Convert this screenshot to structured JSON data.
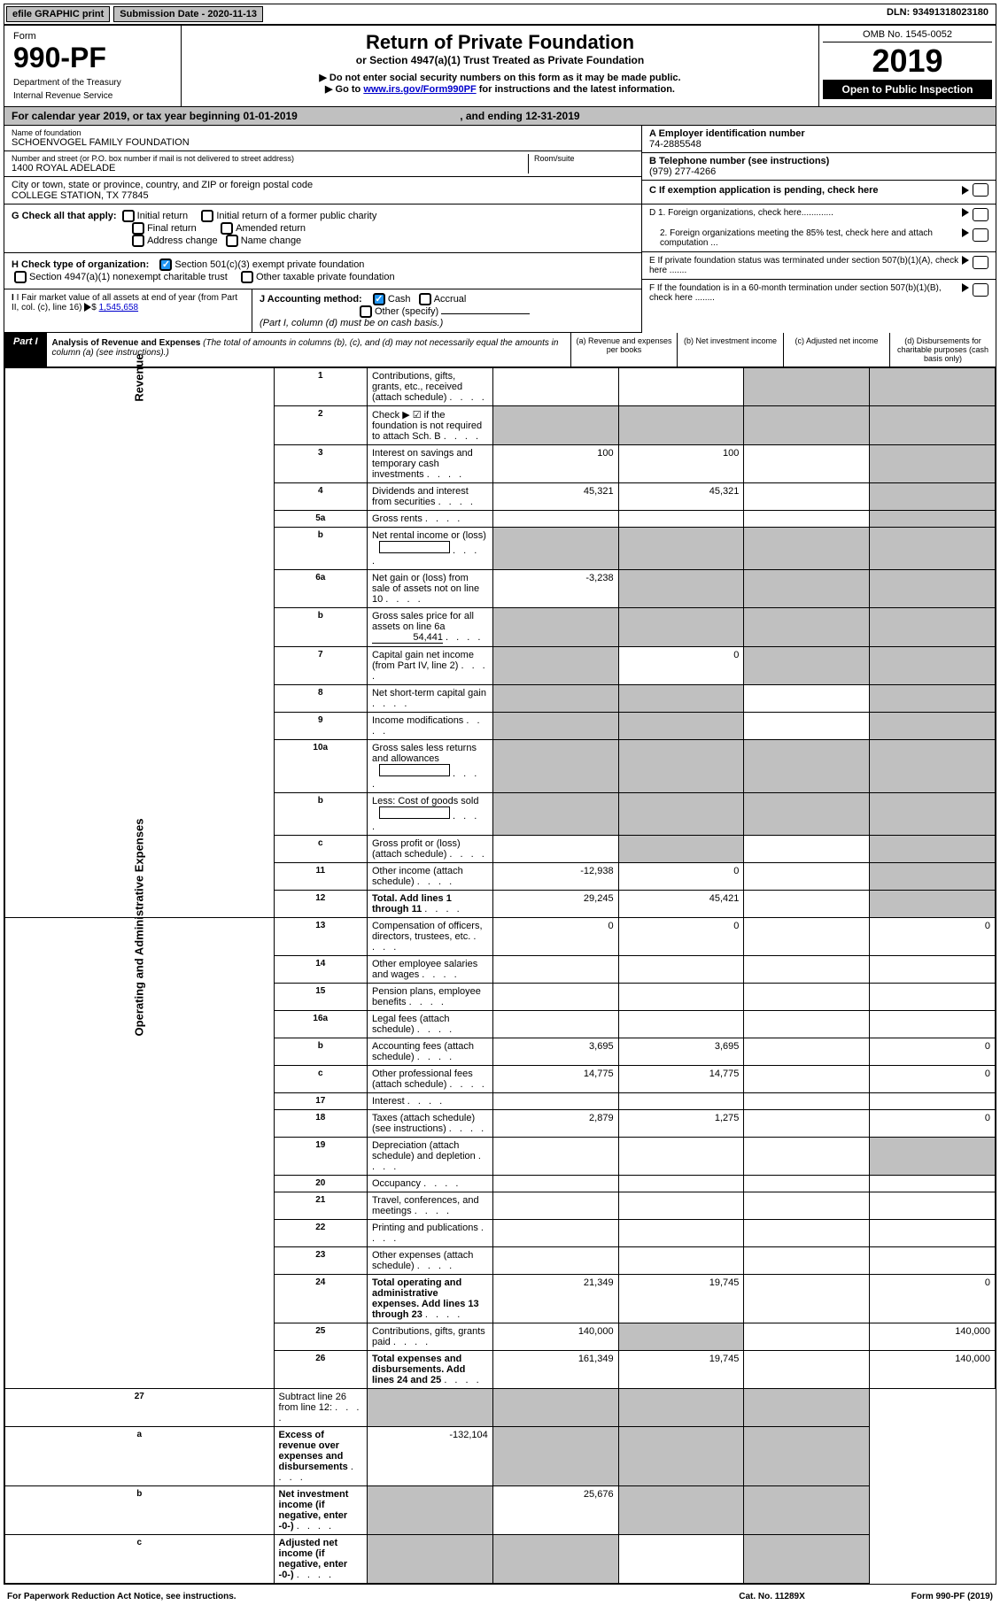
{
  "topbar": {
    "efile": "efile GRAPHIC print",
    "submission": "Submission Date - 2020-11-13",
    "dln": "DLN: 93491318023180"
  },
  "header": {
    "form_label": "Form",
    "form_number": "990-PF",
    "dept1": "Department of the Treasury",
    "dept2": "Internal Revenue Service",
    "title": "Return of Private Foundation",
    "subtitle": "or Section 4947(a)(1) Trust Treated as Private Foundation",
    "note1": "▶ Do not enter social security numbers on this form as it may be made public.",
    "note2": "▶ Go to ",
    "note2_link": "www.irs.gov/Form990PF",
    "note2_suffix": " for instructions and the latest information.",
    "omb": "OMB No. 1545-0052",
    "year": "2019",
    "open": "Open to Public Inspection"
  },
  "calendar": {
    "prefix": "For calendar year 2019, or tax year beginning ",
    "start": "01-01-2019",
    "mid": " , and ending ",
    "end": "12-31-2019"
  },
  "foundation": {
    "name_label": "Name of foundation",
    "name": "SCHOENVOGEL FAMILY FOUNDATION",
    "addr_label": "Number and street (or P.O. box number if mail is not delivered to street address)",
    "addr": "1400 ROYAL ADELADE",
    "room_label": "Room/suite",
    "city_label": "City or town, state or province, country, and ZIP or foreign postal code",
    "city": "COLLEGE STATION, TX  77845"
  },
  "right_info": {
    "a_label": "A Employer identification number",
    "a_val": "74-2885548",
    "b_label": "B Telephone number (see instructions)",
    "b_val": "(979) 277-4266",
    "c_label": "C If exemption application is pending, check here",
    "d1": "D 1. Foreign organizations, check here.............",
    "d2": "2. Foreign organizations meeting the 85% test, check here and attach computation ...",
    "e": "E  If private foundation status was terminated under section 507(b)(1)(A), check here .......",
    "f": "F  If the foundation is in a 60-month termination under section 507(b)(1)(B), check here ........"
  },
  "g": {
    "label": "G Check all that apply:",
    "opts": [
      "Initial return",
      "Initial return of a former public charity",
      "Final return",
      "Amended return",
      "Address change",
      "Name change"
    ]
  },
  "h": {
    "label": "H Check type of organization:",
    "opt1": "Section 501(c)(3) exempt private foundation",
    "opt2": "Section 4947(a)(1) nonexempt charitable trust",
    "opt3": "Other taxable private foundation"
  },
  "i": {
    "label": "I Fair market value of all assets at end of year (from Part II, col. (c), line 16)",
    "val": "1,545,658"
  },
  "j": {
    "label": "J Accounting method:",
    "cash": "Cash",
    "accrual": "Accrual",
    "other": "Other (specify)",
    "note": "(Part I, column (d) must be on cash basis.)"
  },
  "part1": {
    "label": "Part I",
    "title": "Analysis of Revenue and Expenses",
    "note": "(The total of amounts in columns (b), (c), and (d) may not necessarily equal the amounts in column (a) (see instructions).)",
    "col_a": "(a) Revenue and expenses per books",
    "col_b": "(b) Net investment income",
    "col_c": "(c) Adjusted net income",
    "col_d": "(d) Disbursements for charitable purposes (cash basis only)"
  },
  "vert": {
    "revenue": "Revenue",
    "expenses": "Operating and Administrative Expenses"
  },
  "rows": [
    {
      "n": "1",
      "desc": "Contributions, gifts, grants, etc., received (attach schedule)",
      "a": "",
      "b": "",
      "c": "shade",
      "d": "shade"
    },
    {
      "n": "2",
      "desc": "Check ▶ ☑ if the foundation is not required to attach Sch. B",
      "a": "shade",
      "b": "shade",
      "c": "shade",
      "d": "shade",
      "bold_not": true
    },
    {
      "n": "3",
      "desc": "Interest on savings and temporary cash investments",
      "a": "100",
      "b": "100",
      "c": "",
      "d": "shade"
    },
    {
      "n": "4",
      "desc": "Dividends and interest from securities",
      "a": "45,321",
      "b": "45,321",
      "c": "",
      "d": "shade"
    },
    {
      "n": "5a",
      "desc": "Gross rents",
      "a": "",
      "b": "",
      "c": "",
      "d": "shade"
    },
    {
      "n": "b",
      "desc": "Net rental income or (loss)",
      "a": "shade",
      "b": "shade",
      "c": "shade",
      "d": "shade",
      "inset": true
    },
    {
      "n": "6a",
      "desc": "Net gain or (loss) from sale of assets not on line 10",
      "a": "-3,238",
      "b": "shade",
      "c": "shade",
      "d": "shade"
    },
    {
      "n": "b",
      "desc": "Gross sales price for all assets on line 6a",
      "extra": "54,441",
      "a": "shade",
      "b": "shade",
      "c": "shade",
      "d": "shade"
    },
    {
      "n": "7",
      "desc": "Capital gain net income (from Part IV, line 2)",
      "a": "shade",
      "b": "0",
      "c": "shade",
      "d": "shade"
    },
    {
      "n": "8",
      "desc": "Net short-term capital gain",
      "a": "shade",
      "b": "shade",
      "c": "",
      "d": "shade"
    },
    {
      "n": "9",
      "desc": "Income modifications",
      "a": "shade",
      "b": "shade",
      "c": "",
      "d": "shade"
    },
    {
      "n": "10a",
      "desc": "Gross sales less returns and allowances",
      "a": "shade",
      "b": "shade",
      "c": "shade",
      "d": "shade",
      "inset": true
    },
    {
      "n": "b",
      "desc": "Less: Cost of goods sold",
      "a": "shade",
      "b": "shade",
      "c": "shade",
      "d": "shade",
      "inset": true
    },
    {
      "n": "c",
      "desc": "Gross profit or (loss) (attach schedule)",
      "a": "",
      "b": "shade",
      "c": "",
      "d": "shade"
    },
    {
      "n": "11",
      "desc": "Other income (attach schedule)",
      "a": "-12,938",
      "b": "0",
      "c": "",
      "d": "shade"
    },
    {
      "n": "12",
      "desc": "Total. Add lines 1 through 11",
      "a": "29,245",
      "b": "45,421",
      "c": "",
      "d": "shade",
      "bold": true
    }
  ],
  "exp_rows": [
    {
      "n": "13",
      "desc": "Compensation of officers, directors, trustees, etc.",
      "a": "0",
      "b": "0",
      "c": "",
      "d": "0"
    },
    {
      "n": "14",
      "desc": "Other employee salaries and wages",
      "a": "",
      "b": "",
      "c": "",
      "d": ""
    },
    {
      "n": "15",
      "desc": "Pension plans, employee benefits",
      "a": "",
      "b": "",
      "c": "",
      "d": ""
    },
    {
      "n": "16a",
      "desc": "Legal fees (attach schedule)",
      "a": "",
      "b": "",
      "c": "",
      "d": ""
    },
    {
      "n": "b",
      "desc": "Accounting fees (attach schedule)",
      "a": "3,695",
      "b": "3,695",
      "c": "",
      "d": "0"
    },
    {
      "n": "c",
      "desc": "Other professional fees (attach schedule)",
      "a": "14,775",
      "b": "14,775",
      "c": "",
      "d": "0"
    },
    {
      "n": "17",
      "desc": "Interest",
      "a": "",
      "b": "",
      "c": "",
      "d": ""
    },
    {
      "n": "18",
      "desc": "Taxes (attach schedule) (see instructions)",
      "a": "2,879",
      "b": "1,275",
      "c": "",
      "d": "0"
    },
    {
      "n": "19",
      "desc": "Depreciation (attach schedule) and depletion",
      "a": "",
      "b": "",
      "c": "",
      "d": "shade"
    },
    {
      "n": "20",
      "desc": "Occupancy",
      "a": "",
      "b": "",
      "c": "",
      "d": ""
    },
    {
      "n": "21",
      "desc": "Travel, conferences, and meetings",
      "a": "",
      "b": "",
      "c": "",
      "d": ""
    },
    {
      "n": "22",
      "desc": "Printing and publications",
      "a": "",
      "b": "",
      "c": "",
      "d": ""
    },
    {
      "n": "23",
      "desc": "Other expenses (attach schedule)",
      "a": "",
      "b": "",
      "c": "",
      "d": ""
    },
    {
      "n": "24",
      "desc": "Total operating and administrative expenses. Add lines 13 through 23",
      "a": "21,349",
      "b": "19,745",
      "c": "",
      "d": "0",
      "bold": true
    },
    {
      "n": "25",
      "desc": "Contributions, gifts, grants paid",
      "a": "140,000",
      "b": "shade",
      "c": "",
      "d": "140,000"
    },
    {
      "n": "26",
      "desc": "Total expenses and disbursements. Add lines 24 and 25",
      "a": "161,349",
      "b": "19,745",
      "c": "",
      "d": "140,000",
      "bold": true
    }
  ],
  "final_rows": [
    {
      "n": "27",
      "desc": "Subtract line 26 from line 12:",
      "a": "shade",
      "b": "shade",
      "c": "shade",
      "d": "shade"
    },
    {
      "n": "a",
      "desc": "Excess of revenue over expenses and disbursements",
      "a": "-132,104",
      "b": "shade",
      "c": "shade",
      "d": "shade",
      "bold": true
    },
    {
      "n": "b",
      "desc": "Net investment income (if negative, enter -0-)",
      "a": "shade",
      "b": "25,676",
      "c": "shade",
      "d": "shade",
      "bold": true
    },
    {
      "n": "c",
      "desc": "Adjusted net income (if negative, enter -0-)",
      "a": "shade",
      "b": "shade",
      "c": "",
      "d": "shade",
      "bold": true
    }
  ],
  "footer": {
    "left": "For Paperwork Reduction Act Notice, see instructions.",
    "mid": "Cat. No. 11289X",
    "right": "Form 990-PF (2019)"
  }
}
